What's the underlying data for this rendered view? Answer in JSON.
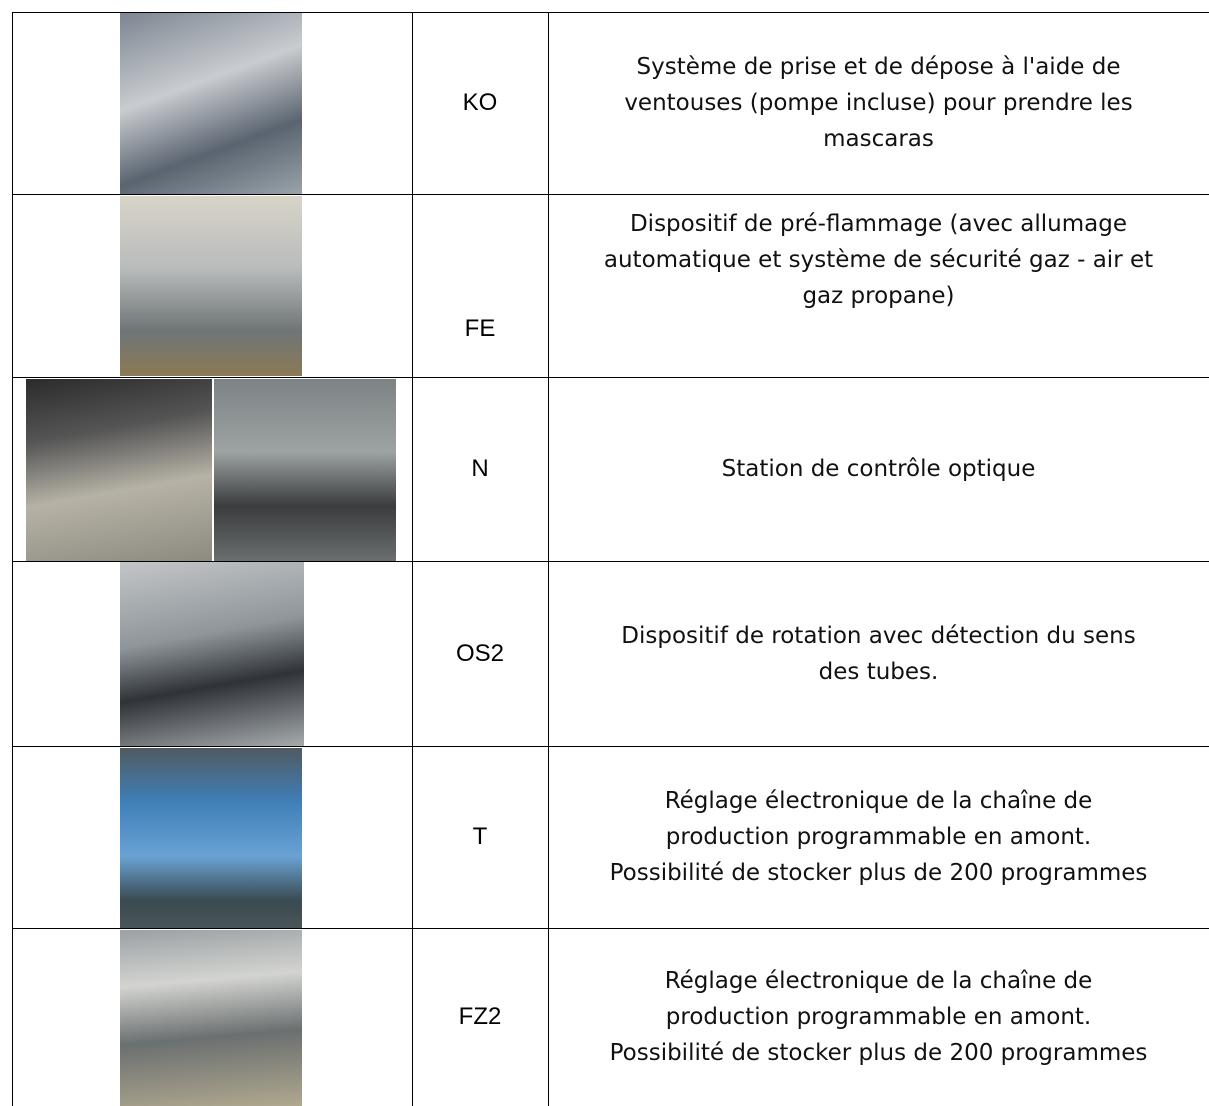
{
  "table": {
    "rows": [
      {
        "code": "KO",
        "description": [
          "Système de prise et de dépose à l'aide de",
          "ventouses (pompe incluse) pour prendre les",
          "mascaras"
        ]
      },
      {
        "code": "FE",
        "description": [
          "Dispositif de pré-flammage (avec allumage",
          "automatique et système de sécurité gaz - air et",
          "gaz propane)"
        ]
      },
      {
        "code": "N",
        "description": [
          "Station de contrôle optique"
        ]
      },
      {
        "code": "OS2",
        "description": [
          "Dispositif de rotation avec détection du sens",
          "des tubes."
        ]
      },
      {
        "code": "T",
        "description": [
          "Réglage électronique de la chaîne de",
          "production programmable en amont.",
          "Possibilité de stocker plus de 200 programmes"
        ]
      },
      {
        "code": "FZ2",
        "description": [
          "Réglage électronique de la chaîne de",
          "production programmable en amont.",
          "Possibilité de stocker plus de 200 programmes"
        ]
      }
    ]
  }
}
